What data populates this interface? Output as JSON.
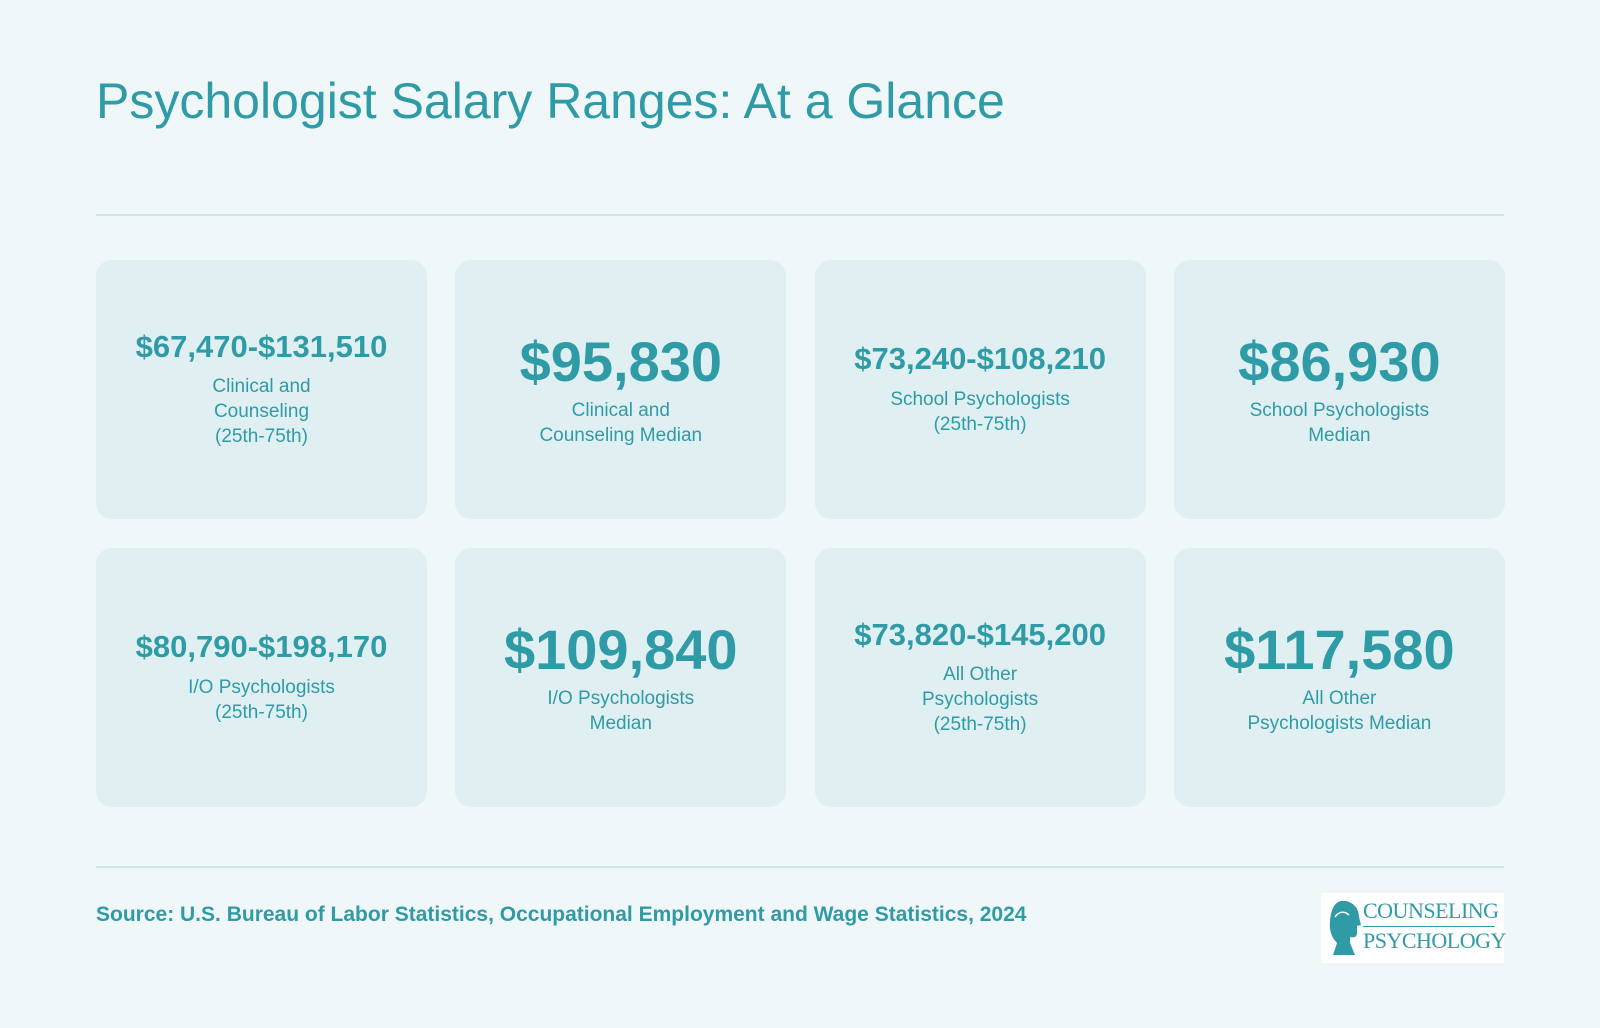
{
  "title": "Psychologist Salary Ranges: At a Glance",
  "cards": [
    {
      "value": "$67,470-$131,510",
      "label": "Clinical and\nCounseling\n(25th-75th)"
    },
    {
      "value": "$95,830",
      "label": "Clinical and\nCounseling Median"
    },
    {
      "value": "$73,240-$108,210",
      "label": "School Psychologists\n(25th-75th)"
    },
    {
      "value": "$86,930",
      "label": "School Psychologists\nMedian"
    },
    {
      "value": "$80,790-$198,170",
      "label": "I/O Psychologists\n(25th-75th)"
    },
    {
      "value": "$109,840",
      "label": "I/O Psychologists\nMedian"
    },
    {
      "value": "$73,820-$145,200",
      "label": "All Other\nPsychologists\n(25th-75th)"
    },
    {
      "value": "$117,580",
      "label": "All Other\nPsychologists Median"
    }
  ],
  "source": "Source: U.S. Bureau of Labor Statistics, Occupational Employment and Wage Statistics, 2024",
  "logo": {
    "line1": "COUNSELING",
    "line2": "PSYCHOLOGY",
    "icon": "head-profile-icon"
  },
  "colors": {
    "accent": "#2e9ba6",
    "background": "#f0f7f8",
    "card": "#e0f0f2",
    "divider": "#cfe6e9"
  }
}
